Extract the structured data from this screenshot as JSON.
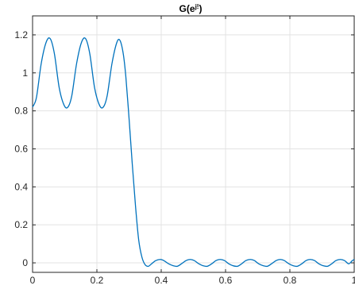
{
  "chart_data": {
    "type": "line",
    "title": "G(e",
    "title_superscript": "j!",
    "title_suffix": ")",
    "xlabel": "",
    "ylabel": "",
    "xlim": [
      0,
      1
    ],
    "ylim": [
      -0.05,
      1.3
    ],
    "xticks": [
      {
        "value": 0,
        "label": "0"
      },
      {
        "value": 0.2,
        "label": "0.2"
      },
      {
        "value": 0.4,
        "label": "0.4"
      },
      {
        "value": 0.6,
        "label": "0.6"
      },
      {
        "value": 0.8,
        "label": "0.8"
      },
      {
        "value": 1,
        "label": "1"
      }
    ],
    "yticks": [
      {
        "value": 0,
        "label": "0"
      },
      {
        "value": 0.2,
        "label": "0.2"
      },
      {
        "value": 0.4,
        "label": "0.4"
      },
      {
        "value": 0.6,
        "label": "0.6"
      },
      {
        "value": 0.8,
        "label": "0.8"
      },
      {
        "value": 1,
        "label": "1"
      },
      {
        "value": 1.2,
        "label": "1.2"
      }
    ],
    "grid": true,
    "line_color": "#0072BD",
    "series": [
      {
        "x": [
          0,
          0.012,
          0.027,
          0.042,
          0.055,
          0.068,
          0.083,
          0.098,
          0.11,
          0.122,
          0.137,
          0.152,
          0.165,
          0.178,
          0.193,
          0.208,
          0.22,
          0.232,
          0.247,
          0.262,
          0.272,
          0.282,
          0.29,
          0.3,
          0.31,
          0.32,
          0.33,
          0.34,
          0.35,
          0.36,
          0.37,
          0.383,
          0.398,
          0.41,
          0.423,
          0.437,
          0.45,
          0.463,
          0.477,
          0.49,
          0.503,
          0.517,
          0.53,
          0.543,
          0.557,
          0.57,
          0.583,
          0.597,
          0.61,
          0.623,
          0.637,
          0.65,
          0.663,
          0.677,
          0.69,
          0.703,
          0.717,
          0.73,
          0.743,
          0.757,
          0.77,
          0.783,
          0.797,
          0.81,
          0.823,
          0.837,
          0.85,
          0.863,
          0.877,
          0.89,
          0.903,
          0.917,
          0.93,
          0.943,
          0.957,
          0.97,
          0.983,
          0.993,
          1.0
        ],
        "y": [
          0.82,
          0.87,
          1.05,
          1.16,
          1.18,
          1.1,
          0.92,
          0.83,
          0.82,
          0.88,
          1.05,
          1.16,
          1.18,
          1.1,
          0.92,
          0.83,
          0.82,
          0.88,
          1.05,
          1.16,
          1.17,
          1.1,
          0.98,
          0.76,
          0.52,
          0.3,
          0.12,
          0.03,
          -0.01,
          -0.018,
          -0.005,
          0.012,
          0.018,
          0.01,
          -0.005,
          -0.015,
          -0.018,
          -0.005,
          0.012,
          0.018,
          0.012,
          -0.005,
          -0.015,
          -0.018,
          -0.005,
          0.012,
          0.018,
          0.012,
          -0.005,
          -0.015,
          -0.018,
          -0.005,
          0.012,
          0.018,
          0.012,
          -0.005,
          -0.015,
          -0.018,
          -0.005,
          0.012,
          0.018,
          0.012,
          -0.005,
          -0.015,
          -0.018,
          -0.005,
          0.012,
          0.018,
          0.012,
          -0.005,
          -0.015,
          -0.018,
          -0.005,
          0.012,
          0.018,
          0.012,
          -0.005,
          0.01,
          0.018
        ]
      }
    ]
  }
}
